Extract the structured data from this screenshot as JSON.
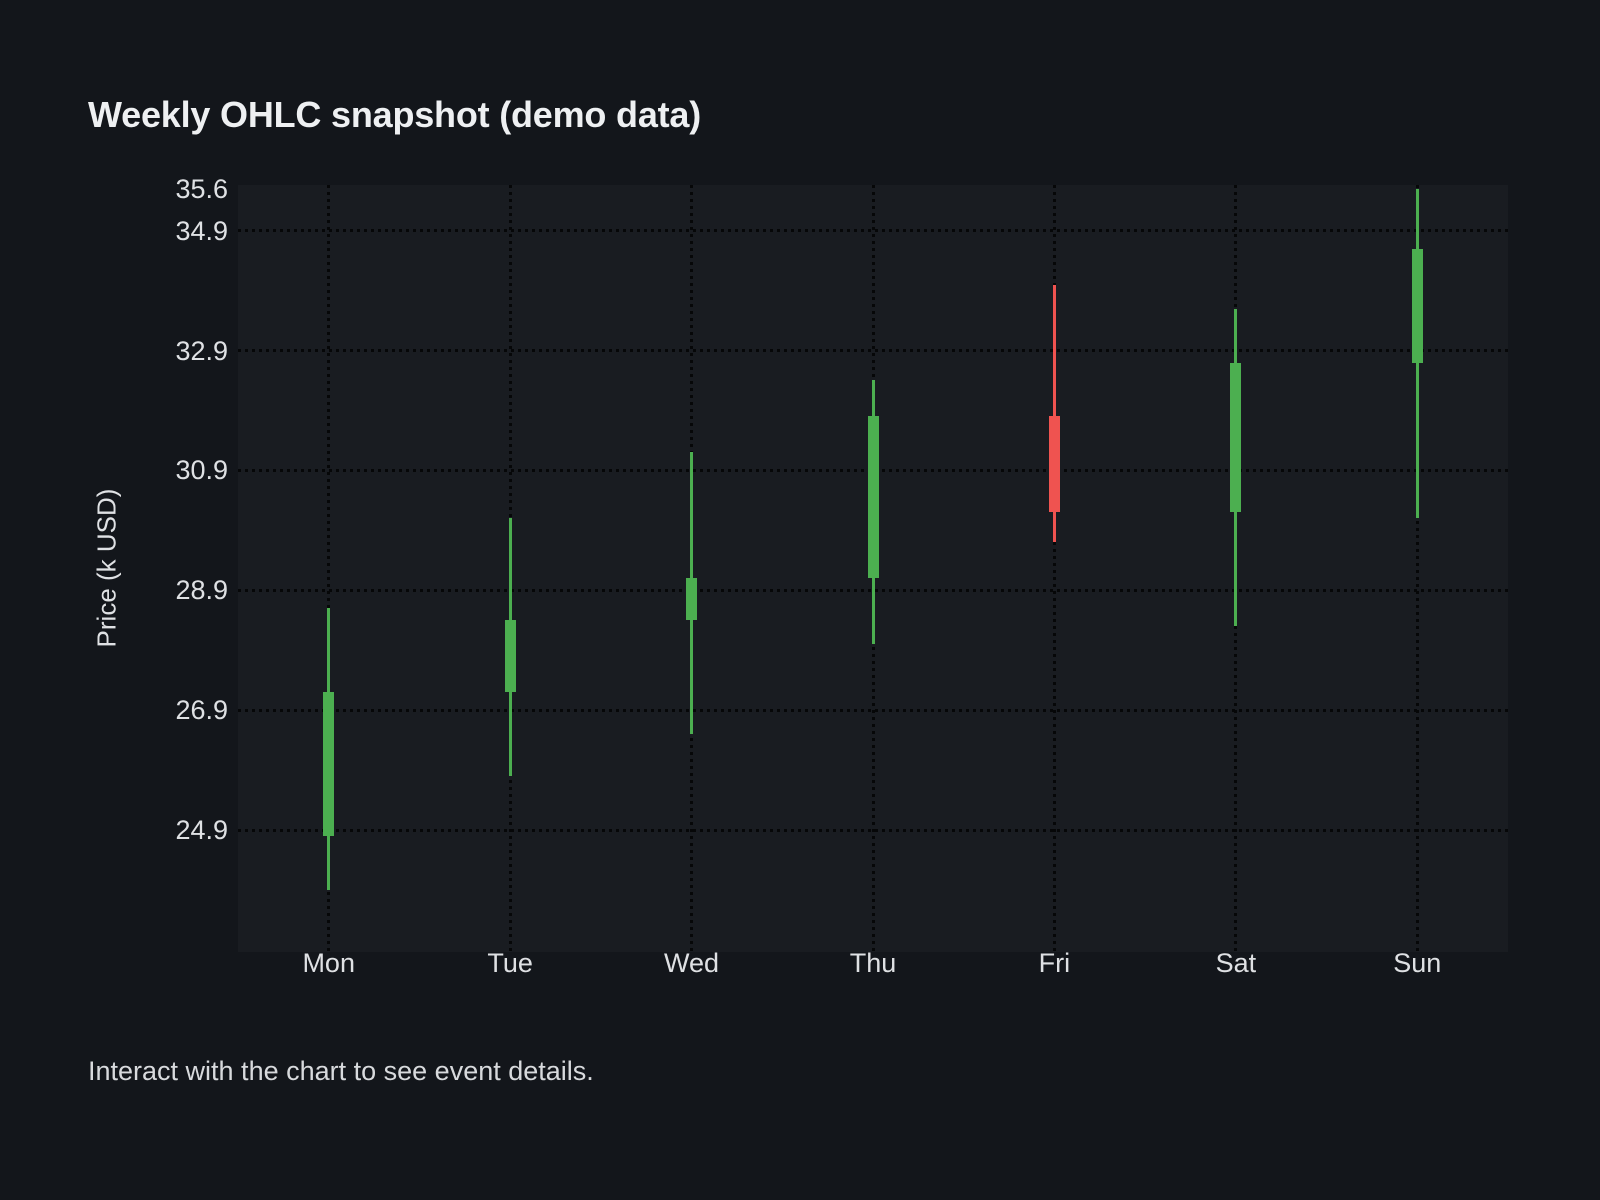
{
  "page": {
    "title": "Weekly OHLC snapshot (demo data)",
    "footer": "Interact with the chart to see event details."
  },
  "chart_data": {
    "type": "candlestick",
    "title": "Weekly OHLC snapshot (demo data)",
    "xlabel": "",
    "ylabel": "Price (k USD)",
    "categories": [
      "Mon",
      "Tue",
      "Wed",
      "Thu",
      "Fri",
      "Sat",
      "Sun"
    ],
    "series": [
      {
        "day": "Mon",
        "open": 24.8,
        "high": 28.6,
        "low": 23.9,
        "close": 27.2,
        "direction": "up"
      },
      {
        "day": "Tue",
        "open": 27.2,
        "high": 30.1,
        "low": 25.8,
        "close": 28.4,
        "direction": "up"
      },
      {
        "day": "Wed",
        "open": 28.4,
        "high": 31.2,
        "low": 26.5,
        "close": 29.1,
        "direction": "up"
      },
      {
        "day": "Thu",
        "open": 29.1,
        "high": 32.4,
        "low": 28.0,
        "close": 31.8,
        "direction": "up"
      },
      {
        "day": "Fri",
        "open": 31.8,
        "high": 34.0,
        "low": 29.7,
        "close": 30.2,
        "direction": "down"
      },
      {
        "day": "Sat",
        "open": 30.2,
        "high": 33.6,
        "low": 28.3,
        "close": 32.7,
        "direction": "up"
      },
      {
        "day": "Sun",
        "open": 32.7,
        "high": 35.6,
        "low": 30.1,
        "close": 34.6,
        "direction": "up"
      }
    ],
    "y_ticks": [
      {
        "label": "35.6",
        "value": 35.6,
        "grid": false
      },
      {
        "label": "34.9",
        "value": 34.9,
        "grid": true
      },
      {
        "label": "32.9",
        "value": 32.9,
        "grid": true
      },
      {
        "label": "30.9",
        "value": 30.9,
        "grid": true
      },
      {
        "label": "28.9",
        "value": 28.9,
        "grid": true
      },
      {
        "label": "26.9",
        "value": 26.9,
        "grid": true
      },
      {
        "label": "24.9",
        "value": 24.9,
        "grid": true
      }
    ],
    "ylim": [
      22.87,
      35.66
    ],
    "grid": "dotted",
    "legend": "none",
    "colors": {
      "up": "#4caf50",
      "down": "#ef5350"
    }
  }
}
